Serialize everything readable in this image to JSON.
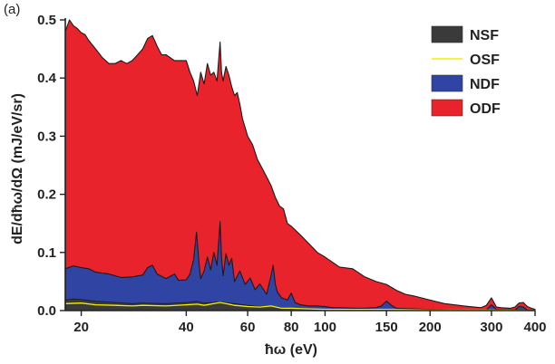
{
  "panel_label": "(a)",
  "chart_data": {
    "type": "area",
    "xscale": "log",
    "xlim": [
      18,
      400
    ],
    "ylim": [
      0,
      0.5
    ],
    "xlabel": "ħω (eV)",
    "ylabel": "dE/dħω/dΩ (mJ/eV/sr)",
    "xticks": [
      20,
      40,
      60,
      80,
      100,
      150,
      200,
      300,
      400
    ],
    "yticks": [
      0.0,
      0.1,
      0.2,
      0.3,
      0.4,
      0.5
    ],
    "legend_position": "top-right",
    "series": [
      {
        "name": "NSF",
        "style": "area",
        "color": "#3a3a3a",
        "x": [
          18,
          19,
          20,
          22,
          25,
          28,
          30,
          35,
          40,
          43,
          45,
          50,
          55,
          60,
          65,
          70,
          75,
          80,
          90,
          100,
          120,
          150,
          200,
          300,
          400
        ],
        "y": [
          0.018,
          0.02,
          0.019,
          0.016,
          0.014,
          0.012,
          0.013,
          0.012,
          0.014,
          0.016,
          0.013,
          0.015,
          0.012,
          0.009,
          0.007,
          0.008,
          0.005,
          0.004,
          0.003,
          0.002,
          0.002,
          0.002,
          0.001,
          0.001,
          0.0
        ]
      },
      {
        "name": "OSF",
        "style": "line",
        "color": "#f5ef00",
        "x": [
          18,
          20,
          22,
          25,
          28,
          30,
          35,
          40,
          43,
          45,
          50,
          55,
          60,
          65,
          70,
          75,
          80,
          90,
          100,
          120,
          150,
          200,
          300,
          400
        ],
        "y": [
          0.012,
          0.013,
          0.01,
          0.009,
          0.008,
          0.009,
          0.008,
          0.01,
          0.011,
          0.009,
          0.014,
          0.009,
          0.007,
          0.006,
          0.008,
          0.004,
          0.004,
          0.003,
          0.002,
          0.002,
          0.002,
          0.001,
          0.001,
          0.0
        ]
      },
      {
        "name": "NDF",
        "style": "area",
        "color": "#3044a4",
        "x": [
          18,
          19,
          20,
          21,
          22,
          24,
          26,
          28,
          30,
          31,
          32,
          33,
          35,
          37,
          38,
          40,
          41,
          42,
          42.8,
          43.5,
          44,
          45,
          46,
          47,
          48,
          49,
          50,
          50.5,
          51,
          52,
          53,
          54,
          55,
          57,
          59,
          61,
          63,
          65,
          68,
          70,
          71,
          72,
          73,
          75,
          78,
          80,
          82,
          85,
          90,
          95,
          100,
          105,
          110,
          120,
          130,
          140,
          145,
          150,
          155,
          160,
          180,
          200,
          250,
          290,
          300,
          310,
          330,
          350,
          360,
          370,
          380,
          400
        ],
        "y": [
          0.072,
          0.077,
          0.074,
          0.072,
          0.066,
          0.063,
          0.057,
          0.058,
          0.061,
          0.074,
          0.078,
          0.063,
          0.055,
          0.063,
          0.052,
          0.053,
          0.063,
          0.088,
          0.135,
          0.082,
          0.055,
          0.068,
          0.092,
          0.07,
          0.1,
          0.078,
          0.153,
          0.09,
          0.06,
          0.098,
          0.078,
          0.09,
          0.05,
          0.068,
          0.045,
          0.056,
          0.036,
          0.046,
          0.028,
          0.06,
          0.078,
          0.045,
          0.032,
          0.022,
          0.018,
          0.03,
          0.014,
          0.01,
          0.008,
          0.008,
          0.007,
          0.005,
          0.005,
          0.004,
          0.004,
          0.005,
          0.008,
          0.016,
          0.009,
          0.004,
          0.003,
          0.002,
          0.001,
          0.001,
          0.01,
          0.002,
          0.001,
          0.001,
          0.007,
          0.006,
          0.001,
          0.0
        ]
      },
      {
        "name": "ODF",
        "style": "area",
        "color": "#e8232b",
        "x": [
          18,
          18.5,
          19,
          19.5,
          20,
          20.5,
          21,
          22,
          23,
          24,
          25,
          26,
          27,
          28,
          29,
          30,
          31,
          32,
          33,
          34,
          35,
          37,
          39,
          40,
          41,
          42,
          43,
          44,
          45,
          46,
          47,
          48,
          49,
          50,
          50.5,
          51,
          52,
          53,
          54,
          55,
          56,
          57,
          58,
          59,
          60,
          62,
          64,
          66,
          68,
          70,
          72,
          74,
          76,
          78,
          80,
          85,
          90,
          95,
          100,
          110,
          120,
          130,
          140,
          150,
          160,
          170,
          180,
          200,
          220,
          250,
          280,
          290,
          300,
          305,
          310,
          320,
          340,
          350,
          360,
          370,
          380,
          390,
          400
        ],
        "y": [
          0.48,
          0.5,
          0.49,
          0.485,
          0.478,
          0.475,
          0.465,
          0.45,
          0.435,
          0.425,
          0.425,
          0.43,
          0.425,
          0.43,
          0.44,
          0.45,
          0.468,
          0.473,
          0.455,
          0.44,
          0.44,
          0.43,
          0.43,
          0.43,
          0.41,
          0.395,
          0.37,
          0.41,
          0.39,
          0.425,
          0.405,
          0.41,
          0.395,
          0.462,
          0.41,
          0.395,
          0.42,
          0.405,
          0.385,
          0.37,
          0.375,
          0.355,
          0.33,
          0.315,
          0.3,
          0.285,
          0.26,
          0.245,
          0.23,
          0.215,
          0.195,
          0.18,
          0.175,
          0.15,
          0.145,
          0.13,
          0.115,
          0.1,
          0.092,
          0.075,
          0.072,
          0.058,
          0.05,
          0.045,
          0.035,
          0.028,
          0.025,
          0.018,
          0.012,
          0.008,
          0.005,
          0.009,
          0.022,
          0.014,
          0.006,
          0.005,
          0.004,
          0.006,
          0.013,
          0.014,
          0.007,
          0.004,
          0.002
        ]
      }
    ],
    "legend_order": [
      "NSF",
      "OSF",
      "NDF",
      "ODF"
    ]
  }
}
